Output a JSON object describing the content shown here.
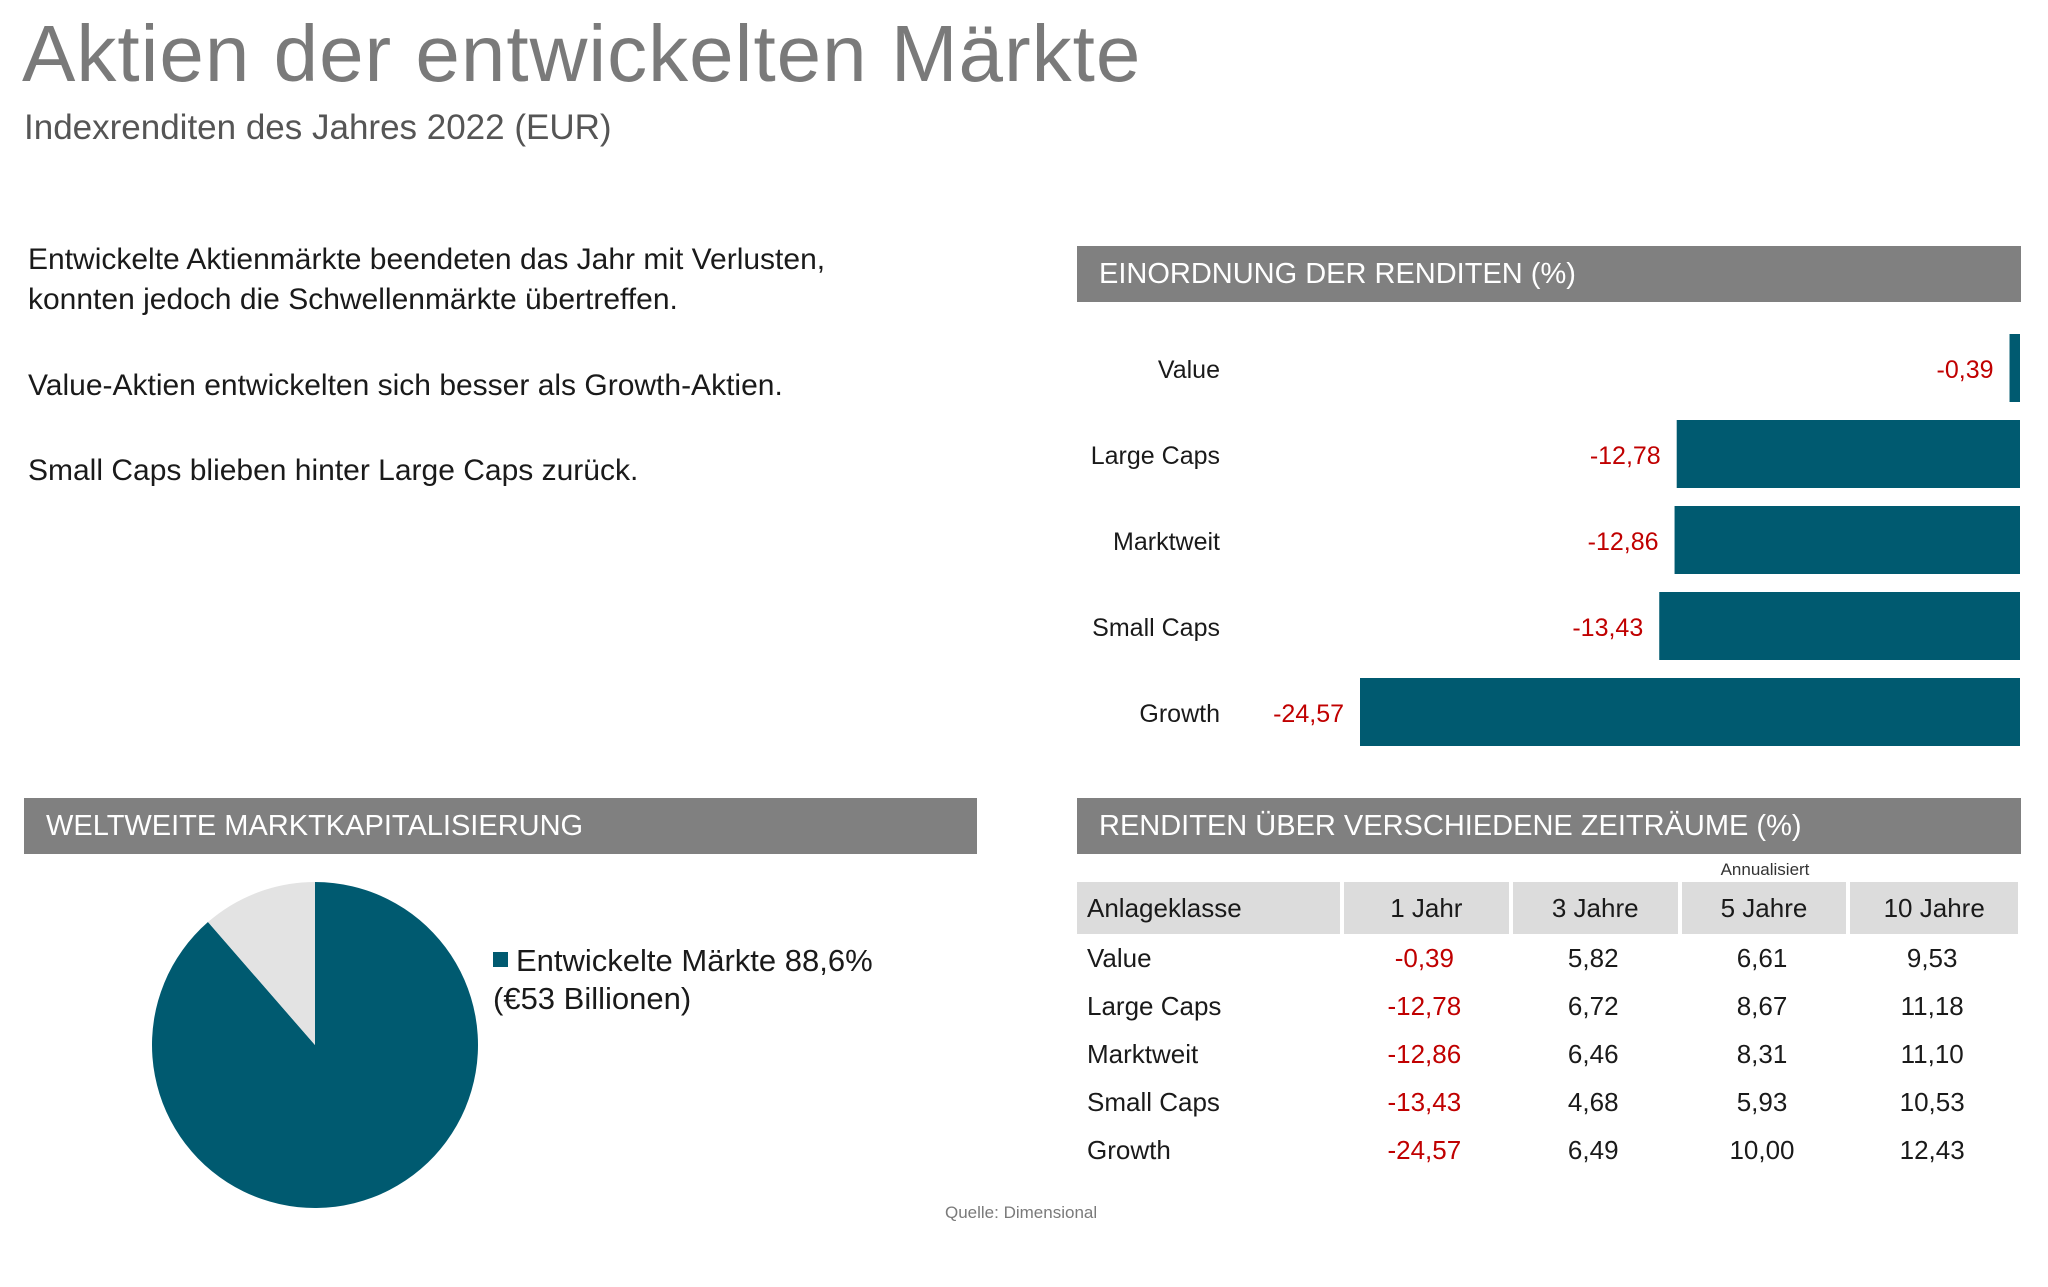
{
  "header": {
    "title": "Aktien der entwickelten Märkte",
    "subtitle": "Indexrenditen des Jahres 2022 (EUR)"
  },
  "notes": [
    "Entwickelte Aktienmärkte beendeten das Jahr mit Verlusten,",
    "konnten jedoch die Schwellenmärkte übertreffen.",
    "Value-Aktien entwickelten sich besser als Growth-Aktien.",
    "Small Caps blieben hinter Large Caps zurück."
  ],
  "panels": {
    "bar_header": "EINORDNUNG DER RENDITEN (%)",
    "pie_header": "WELTWEITE MARKTKAPITALISIERUNG",
    "table_header": "RENDITEN ÜBER VERSCHIEDENE ZEITRÄUME (%)"
  },
  "colors": {
    "bar": "#005a70",
    "negative_text": "#c00000",
    "pie_rest": "#e3e3e3",
    "header_bg": "#808080"
  },
  "chart_data": [
    {
      "type": "bar",
      "orientation": "horizontal",
      "title": "EINORDNUNG DER RENDITEN (%)",
      "categories": [
        "Value",
        "Large Caps",
        "Marktweit",
        "Small Caps",
        "Growth"
      ],
      "values": [
        -0.39,
        -12.78,
        -12.86,
        -13.43,
        -24.57
      ],
      "value_labels": [
        "-0,39",
        "-12,78",
        "-12,86",
        "-13,43",
        "-24,57"
      ],
      "xlim": [
        -24.57,
        0
      ],
      "grid": false
    },
    {
      "type": "pie",
      "title": "WELTWEITE MARKTKAPITALISIERUNG",
      "slices": [
        {
          "label": "Entwickelte Märkte 88,6%",
          "value": 88.6,
          "color": "#005a70"
        },
        {
          "label": "",
          "value": 11.4,
          "color": "#e3e3e3"
        }
      ],
      "legend": [
        "Entwickelte Märkte 88,6%",
        "(€53 Billionen)"
      ],
      "legend_placement": "right"
    },
    {
      "type": "table",
      "title": "RENDITEN ÜBER VERSCHIEDENE ZEITRÄUME (%)",
      "group_label": "Annualisiert",
      "columns": [
        "Anlageklasse",
        "1 Jahr",
        "3 Jahre",
        "5 Jahre",
        "10 Jahre"
      ],
      "rows": [
        [
          "Value",
          "-0,39",
          "5,82",
          "6,61",
          "9,53"
        ],
        [
          "Large Caps",
          "-12,78",
          "6,72",
          "8,67",
          "11,18"
        ],
        [
          "Marktweit",
          "-12,86",
          "6,46",
          "8,31",
          "11,10"
        ],
        [
          "Small Caps",
          "-13,43",
          "4,68",
          "5,93",
          "10,53"
        ],
        [
          "Growth",
          "-24,57",
          "6,49",
          "10,00",
          "12,43"
        ]
      ]
    }
  ],
  "source": "Quelle: Dimensional"
}
